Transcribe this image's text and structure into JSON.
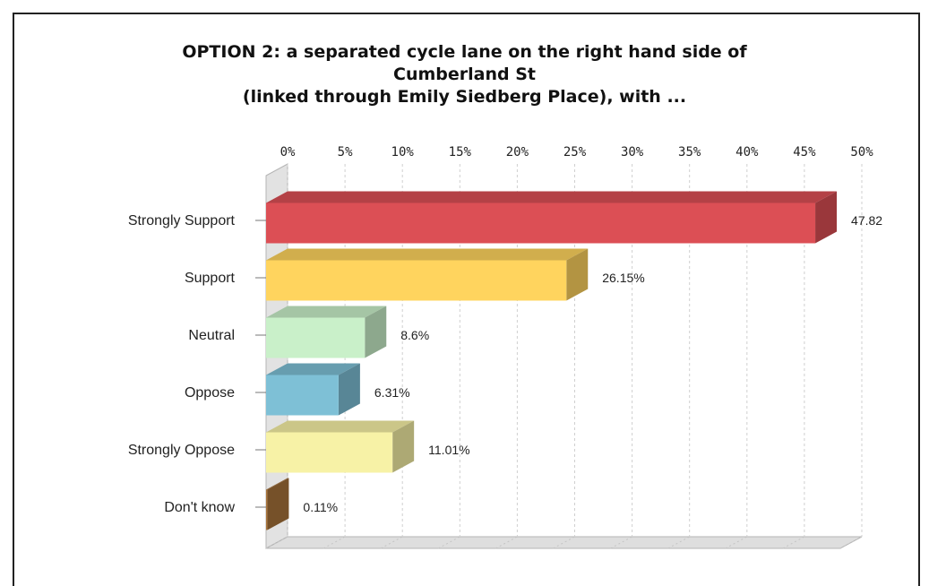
{
  "chart_data": {
    "type": "bar",
    "orientation": "horizontal",
    "style": "3d",
    "title_lines": [
      "OPTION 2: a separated cycle lane on the right hand side of",
      "Cumberland St",
      "(linked through Emily Siedberg Place), with ..."
    ],
    "categories": [
      "Strongly Support",
      "Support",
      "Neutral",
      "Oppose",
      "Strongly Oppose",
      "Don't know"
    ],
    "values": [
      47.82,
      26.15,
      8.6,
      6.31,
      11.01,
      0.11
    ],
    "value_labels": [
      "47.82",
      "26.15%",
      "8.6%",
      "6.31%",
      "11.01%",
      "0.11%"
    ],
    "colors": [
      "#dc4f55",
      "#ffd45e",
      "#c9f0c9",
      "#7ec0d6",
      "#f7f2a6",
      "#a9733a"
    ],
    "x_ticks": [
      "0%",
      "5%",
      "10%",
      "15%",
      "20%",
      "25%",
      "30%",
      "35%",
      "40%",
      "45%",
      "50%"
    ],
    "xlim": [
      0,
      50
    ],
    "xlabel": "",
    "ylabel": "",
    "axis_position": "top",
    "grid": true
  }
}
